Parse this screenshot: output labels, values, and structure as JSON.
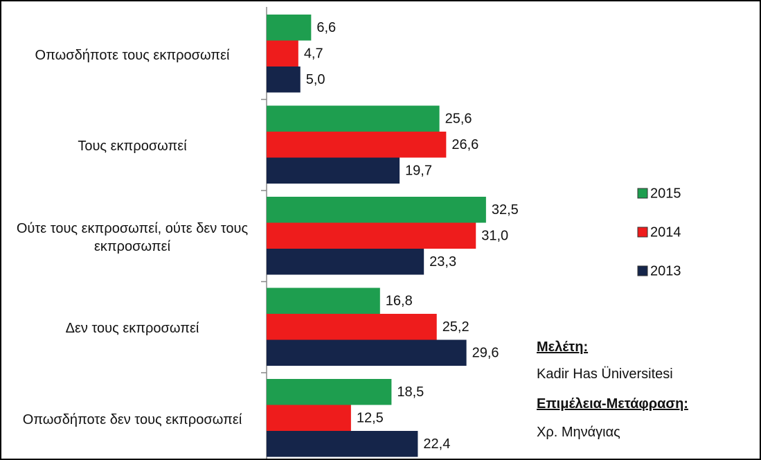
{
  "chart_data": {
    "type": "bar",
    "orientation": "horizontal",
    "categories": [
      "Οπωσδήποτε τους εκπροσωπεί",
      "Τους εκπροσωπεί",
      "Ούτε τους εκπροσωπεί, ούτε δεν τους εκπροσωπεί",
      "Δεν τους εκπροσωπεί",
      "Οπωσδήποτε δεν τους εκπροσωπεί"
    ],
    "series": [
      {
        "name": "2015",
        "color": "#1e9e4f",
        "values": [
          6.6,
          25.6,
          32.5,
          16.8,
          18.5
        ],
        "value_labels": [
          "6,6",
          "25,6",
          "32,5",
          "16,8",
          "18,5"
        ]
      },
      {
        "name": "2014",
        "color": "#ee1c1c",
        "values": [
          4.7,
          26.6,
          31.0,
          25.2,
          12.5
        ],
        "value_labels": [
          "4,7",
          "26,6",
          "31,0",
          "25,2",
          "12,5"
        ]
      },
      {
        "name": "2013",
        "color": "#15254a",
        "values": [
          5.0,
          19.7,
          23.3,
          29.6,
          22.4
        ],
        "value_labels": [
          "5,0",
          "19,7",
          "23,3",
          "29,6",
          "22,4"
        ]
      }
    ],
    "xlim": [
      0,
      40
    ],
    "legend": "right",
    "notes": [
      {
        "label": "Μελέτη:",
        "text": "Kadir Has Üniversitesi"
      },
      {
        "label": "Επιμέλεια-Μετάφραση:",
        "text": "Χρ. Μηνάγιας"
      }
    ]
  }
}
